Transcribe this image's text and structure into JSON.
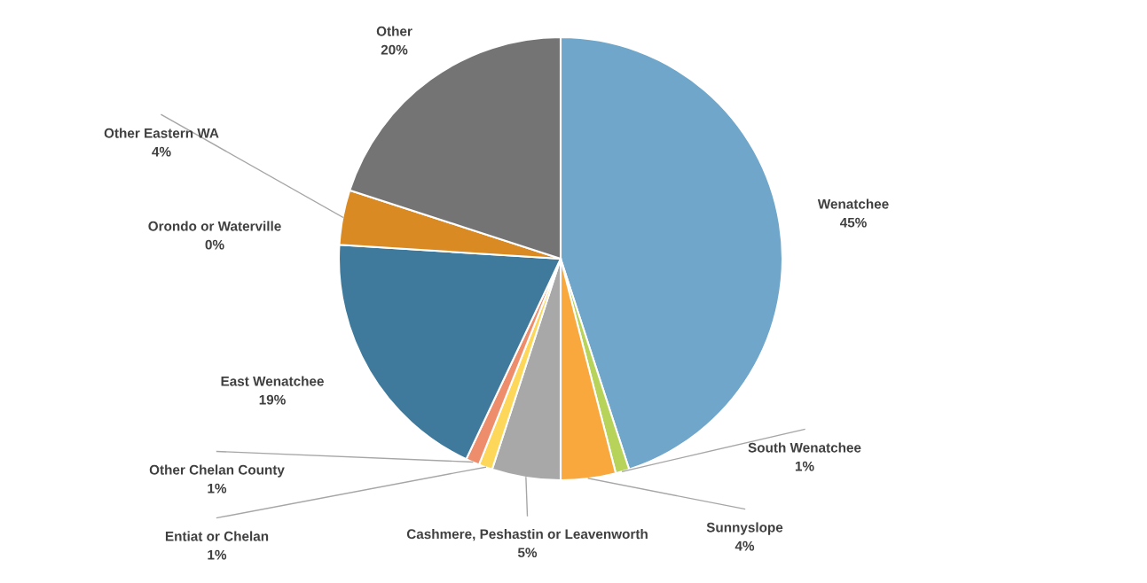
{
  "chart_data": {
    "type": "pie",
    "categories": [
      "Wenatchee",
      "South Wenatchee",
      "Sunnyslope",
      "Cashmere, Peshastin or Leavenworth",
      "Entiat or Chelan",
      "Other Chelan County",
      "East Wenatchee",
      "Orondo or Waterville",
      "Other Eastern WA",
      "Other"
    ],
    "values": [
      45,
      1,
      4,
      5,
      1,
      1,
      19,
      0,
      4,
      20
    ],
    "colors": [
      "#6fa6c9",
      "#b7d35a",
      "#f9a83e",
      "#a8a8a8",
      "#fdd75a",
      "#ee8d6c",
      "#3f7a9c",
      "#6e8f3c",
      "#d98a22",
      "#747474"
    ],
    "value_labels": [
      "45%",
      "1%",
      "4%",
      "5%",
      "1%",
      "1%",
      "19%",
      "0%",
      "4%",
      "20%"
    ]
  }
}
